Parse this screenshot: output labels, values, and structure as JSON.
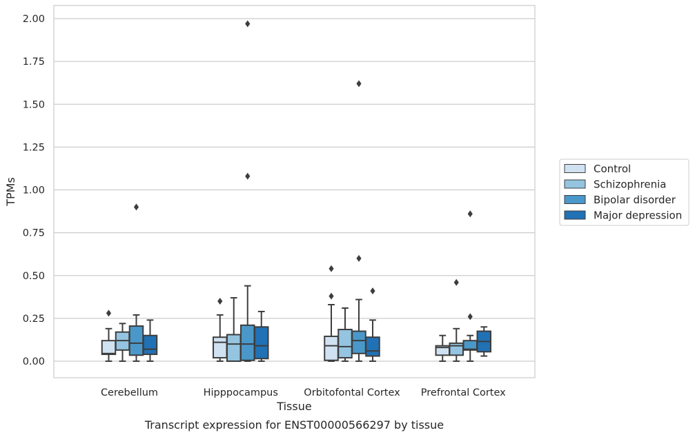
{
  "caption": "Transcript expression for ENST00000566297 by tissue",
  "chart_data": {
    "type": "box",
    "xlabel": "Tissue",
    "ylabel": "TPMs",
    "ylim": [
      -0.1,
      2.07
    ],
    "yticks": [
      "0.00",
      "0.25",
      "0.50",
      "0.75",
      "1.00",
      "1.25",
      "1.50",
      "1.75",
      "2.00"
    ],
    "ytick_values": [
      0,
      0.25,
      0.5,
      0.75,
      1.0,
      1.25,
      1.5,
      1.75,
      2.0
    ],
    "grid": "horizontal",
    "legend_position": "right",
    "categories": [
      "Cerebellum",
      "Hipppocampus",
      "Orbitofontal Cortex",
      "Prefrontal Cortex"
    ],
    "series": [
      {
        "name": "Control",
        "color": "#d0e1f2",
        "boxes": [
          {
            "whislo": 0.0,
            "q1": 0.04,
            "med": 0.045,
            "q3": 0.12,
            "whishi": 0.19,
            "fliers": [
              0.28
            ]
          },
          {
            "whislo": 0.0,
            "q1": 0.02,
            "med": 0.11,
            "q3": 0.14,
            "whishi": 0.27,
            "fliers": [
              0.35
            ]
          },
          {
            "whislo": 0.0,
            "q1": 0.005,
            "med": 0.09,
            "q3": 0.145,
            "whishi": 0.33,
            "fliers": [
              0.38,
              0.54
            ]
          },
          {
            "whislo": 0.0,
            "q1": 0.035,
            "med": 0.08,
            "q3": 0.09,
            "whishi": 0.15,
            "fliers": []
          }
        ]
      },
      {
        "name": "Schizophrenia",
        "color": "#94c4df",
        "boxes": [
          {
            "whislo": 0.0,
            "q1": 0.065,
            "med": 0.12,
            "q3": 0.17,
            "whishi": 0.22,
            "fliers": []
          },
          {
            "whislo": 0.0,
            "q1": 0.0,
            "med": 0.1,
            "q3": 0.155,
            "whishi": 0.37,
            "fliers": []
          },
          {
            "whislo": 0.0,
            "q1": 0.02,
            "med": 0.085,
            "q3": 0.185,
            "whishi": 0.31,
            "fliers": []
          },
          {
            "whislo": 0.0,
            "q1": 0.035,
            "med": 0.09,
            "q3": 0.105,
            "whishi": 0.19,
            "fliers": [
              0.46
            ]
          }
        ]
      },
      {
        "name": "Bipolar disorder",
        "color": "#4a98c9",
        "boxes": [
          {
            "whislo": 0.0,
            "q1": 0.035,
            "med": 0.105,
            "q3": 0.205,
            "whishi": 0.27,
            "fliers": [
              0.9
            ]
          },
          {
            "whislo": 0.0,
            "q1": 0.005,
            "med": 0.1,
            "q3": 0.21,
            "whishi": 0.44,
            "fliers": [
              1.08,
              1.97
            ]
          },
          {
            "whislo": 0.0,
            "q1": 0.045,
            "med": 0.12,
            "q3": 0.175,
            "whishi": 0.36,
            "fliers": [
              0.6,
              1.62
            ]
          },
          {
            "whislo": 0.0,
            "q1": 0.065,
            "med": 0.07,
            "q3": 0.12,
            "whishi": 0.15,
            "fliers": [
              0.26,
              0.86
            ]
          }
        ]
      },
      {
        "name": "Major depression",
        "color": "#2171b5",
        "boxes": [
          {
            "whislo": 0.0,
            "q1": 0.04,
            "med": 0.07,
            "q3": 0.15,
            "whishi": 0.24,
            "fliers": []
          },
          {
            "whislo": 0.0,
            "q1": 0.015,
            "med": 0.09,
            "q3": 0.2,
            "whishi": 0.29,
            "fliers": []
          },
          {
            "whislo": 0.0,
            "q1": 0.03,
            "med": 0.06,
            "q3": 0.14,
            "whishi": 0.24,
            "fliers": [
              0.41
            ]
          },
          {
            "whislo": 0.03,
            "q1": 0.055,
            "med": 0.115,
            "q3": 0.175,
            "whishi": 0.2,
            "fliers": []
          }
        ]
      }
    ]
  }
}
